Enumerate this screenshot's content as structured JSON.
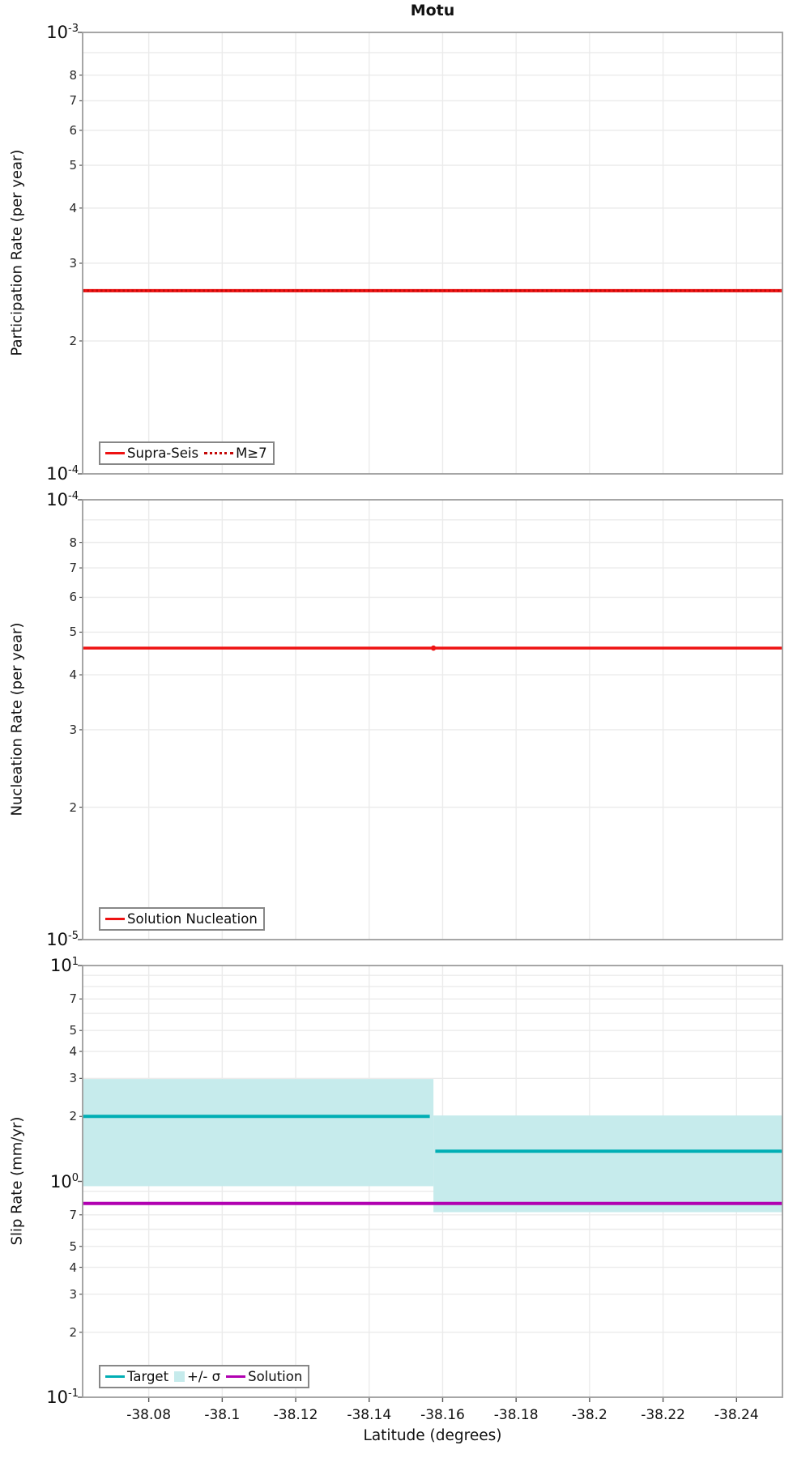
{
  "title": "Motu",
  "xlabel": "Latitude (degrees)",
  "colors": {
    "red": "#ee1212",
    "dark_red": "#c40707",
    "teal": "#00aeb4",
    "sigma_band": "#c6ebec",
    "magenta": "#b100b1",
    "grid": "#ebebeb",
    "frame": "#9c9c9c",
    "tick": "#555555"
  },
  "latitude_ticks": {
    "values": [
      -38.08,
      -38.1,
      -38.12,
      -38.14,
      -38.16,
      -38.18,
      -38.2,
      -38.22,
      -38.24
    ],
    "labels": [
      "-38.08",
      "-38.1",
      "-38.12",
      "-38.14",
      "-38.16",
      "-38.18",
      "-38.2",
      "-38.22",
      "-38.24"
    ]
  },
  "chart_data": [
    {
      "type": "line",
      "panel": "participation-rate",
      "title": "Motu",
      "ylabel": "Participation Rate (per year)",
      "yscale": "log",
      "ylim": [
        0.0001,
        0.001
      ],
      "xlim": [
        -38.062,
        -38.2525
      ],
      "ytick_decades": [
        {
          "base": "10",
          "exp": "-3",
          "value": 0.001
        },
        {
          "base": "10",
          "exp": "-4",
          "value": 0.0001
        }
      ],
      "yticks_minor": [
        {
          "label": "8",
          "value": 0.0008
        },
        {
          "label": "7",
          "value": 0.0007
        },
        {
          "label": "6",
          "value": 0.0006
        },
        {
          "label": "5",
          "value": 0.0005
        },
        {
          "label": "4",
          "value": 0.0004
        },
        {
          "label": "3",
          "value": 0.0003
        },
        {
          "label": "2",
          "value": 0.0002
        }
      ],
      "series": [
        {
          "name": "Supra-Seis",
          "dash": "solid",
          "width": 4,
          "color": "#ee1212",
          "segments": [
            {
              "x": [
                -38.062,
                -38.2525
              ],
              "y": 0.00026
            }
          ]
        },
        {
          "name": "M≥7",
          "dash": "dotted",
          "width": 2.6,
          "color": "#c40707",
          "segments": [
            {
              "x": [
                -38.062,
                -38.2525
              ],
              "y": 0.00026
            }
          ]
        }
      ]
    },
    {
      "type": "line",
      "panel": "nucleation-rate",
      "ylabel": "Nucleation Rate (per year)",
      "yscale": "log",
      "ylim": [
        1e-05,
        0.0001
      ],
      "xlim": [
        -38.062,
        -38.2525
      ],
      "ytick_decades": [
        {
          "base": "10",
          "exp": "-4",
          "value": 0.0001
        },
        {
          "base": "10",
          "exp": "-5",
          "value": 1e-05
        }
      ],
      "yticks_minor": [
        {
          "label": "8",
          "value": 8e-05
        },
        {
          "label": "7",
          "value": 7e-05
        },
        {
          "label": "6",
          "value": 6e-05
        },
        {
          "label": "5",
          "value": 5e-05
        },
        {
          "label": "4",
          "value": 4e-05
        },
        {
          "label": "3",
          "value": 3e-05
        },
        {
          "label": "2",
          "value": 2e-05
        }
      ],
      "series": [
        {
          "name": "Solution Nucleation",
          "dash": "solid",
          "width": 3.5,
          "color": "#ee1212",
          "segments": [
            {
              "x": [
                -38.062,
                -38.2525
              ],
              "y": 4.6e-05
            }
          ],
          "marker": {
            "x": -38.1575,
            "y": 4.6e-05,
            "r": 3.2
          }
        }
      ]
    },
    {
      "type": "line",
      "panel": "slip-rate",
      "ylabel": "Slip Rate (mm/yr)",
      "yscale": "log",
      "ylim": [
        0.1,
        10
      ],
      "xlim": [
        -38.062,
        -38.2525
      ],
      "ytick_decades": [
        {
          "base": "10",
          "exp": "1",
          "value": 10
        },
        {
          "base": "10",
          "exp": "0",
          "value": 1
        },
        {
          "base": "10",
          "exp": "-1",
          "value": 0.1
        }
      ],
      "yticks_minor": [
        {
          "label": "7",
          "value": 7
        },
        {
          "label": "5",
          "value": 5
        },
        {
          "label": "4",
          "value": 4
        },
        {
          "label": "3",
          "value": 3
        },
        {
          "label": "2",
          "value": 2
        },
        {
          "label": "7",
          "value": 0.7
        },
        {
          "label": "5",
          "value": 0.5
        },
        {
          "label": "4",
          "value": 0.4
        },
        {
          "label": "3",
          "value": 0.3
        },
        {
          "label": "2",
          "value": 0.2
        }
      ],
      "series": [
        {
          "name": "Target",
          "dash": "solid",
          "width": 4,
          "color": "#00aeb4",
          "segments": [
            {
              "x": [
                -38.062,
                -38.1565
              ],
              "y": 2.0
            },
            {
              "x": [
                -38.158,
                -38.2525
              ],
              "y": 1.38
            }
          ]
        },
        {
          "name": "+/- σ",
          "type": "band",
          "color": "#c6ebec",
          "segments": [
            {
              "x": [
                -38.062,
                -38.1575
              ],
              "lo": 0.95,
              "hi": 2.98
            },
            {
              "x": [
                -38.1575,
                -38.2525
              ],
              "lo": 0.72,
              "hi": 2.02
            }
          ]
        },
        {
          "name": "Solution",
          "dash": "solid",
          "width": 4,
          "color": "#b100b1",
          "segments": [
            {
              "x": [
                -38.062,
                -38.2525
              ],
              "y": 0.79
            }
          ]
        }
      ],
      "show_xtick_labels": true
    }
  ]
}
